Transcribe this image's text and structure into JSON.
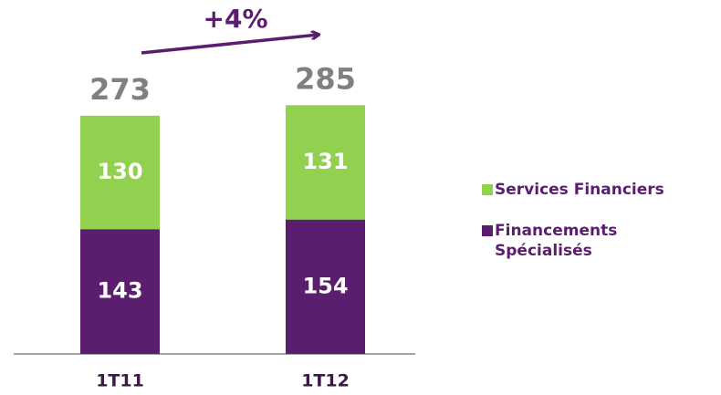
{
  "chart_data": {
    "type": "stacked_bar",
    "annotation": "+4%",
    "categories": [
      "1T11",
      "1T12"
    ],
    "series": [
      {
        "name": "Financements Spécialisés",
        "color": "#5b1e6e",
        "values": [
          143,
          154
        ]
      },
      {
        "name": "Services Financiers",
        "color": "#92d050",
        "values": [
          130,
          131
        ]
      }
    ],
    "totals": [
      273,
      285
    ],
    "ylim": [
      0,
      300
    ]
  }
}
